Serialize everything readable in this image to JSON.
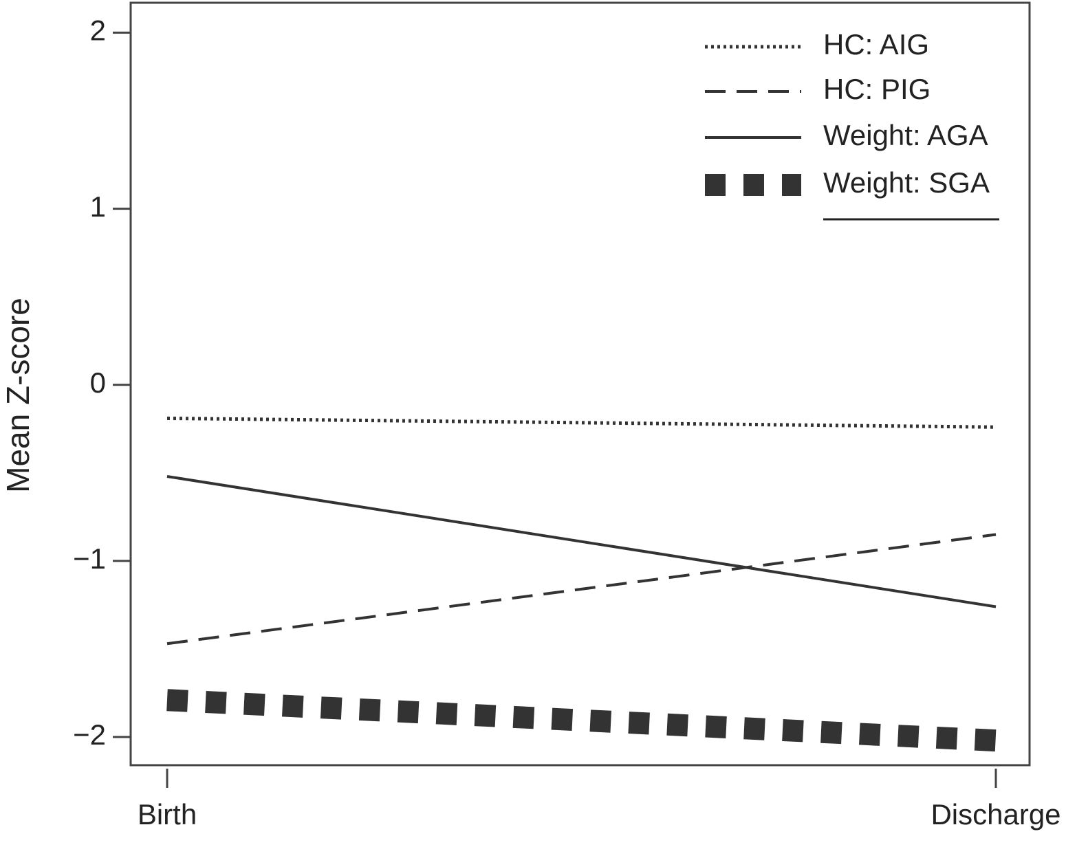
{
  "chart_data": {
    "type": "line",
    "y_label": "Mean Z-score",
    "categories": [
      "Birth",
      "Discharge"
    ],
    "series": [
      {
        "name": "HC: AIG",
        "color": "#333333",
        "style": "dotted",
        "values": [
          -0.19,
          -0.24
        ]
      },
      {
        "name": "HC: PIG",
        "color": "#333333",
        "style": "dashed",
        "values": [
          -1.47,
          -0.85
        ]
      },
      {
        "name": "Weight: AGA",
        "color": "#333333",
        "style": "solid",
        "values": [
          -0.52,
          -1.26
        ]
      },
      {
        "name": "Weight: SGA",
        "color": "#333333",
        "style": "blocks",
        "values": [
          -1.79,
          -2.02
        ]
      }
    ],
    "ylim": [
      -2.16,
      2.17
    ],
    "yticks": [
      {
        "value": -2,
        "label": "−2"
      },
      {
        "value": -1,
        "label": "−1"
      },
      0,
      1,
      2
    ],
    "legend": "top-right"
  }
}
